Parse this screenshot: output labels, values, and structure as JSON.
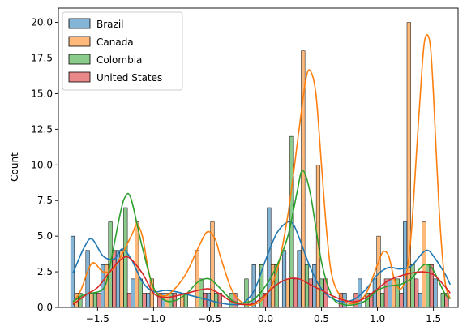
{
  "chart_data": {
    "type": "bar",
    "title": "",
    "xlabel": "",
    "ylabel": "Count",
    "xlim": [
      -1.85,
      1.72
    ],
    "ylim": [
      0,
      21
    ],
    "xticks": [
      -1.5,
      -1.0,
      -0.5,
      0.0,
      0.5,
      1.0,
      1.5
    ],
    "xtick_labels": [
      "−1.5",
      "−1.0",
      "−0.5",
      "0.0",
      "0.5",
      "1.0",
      "1.5"
    ],
    "yticks": [
      0,
      2.5,
      5,
      7.5,
      10,
      12.5,
      15,
      17.5,
      20
    ],
    "ytick_labels": [
      "0.0",
      "2.5",
      "5.0",
      "7.5",
      "10.0",
      "12.5",
      "15.0",
      "17.5",
      "20.0"
    ],
    "grid": false,
    "legend_position": "top-left",
    "bin_edges": [
      -1.74,
      -1.605,
      -1.47,
      -1.335,
      -1.2,
      -1.065,
      -0.93,
      -0.795,
      -0.66,
      -0.525,
      -0.39,
      -0.255,
      -0.12,
      0.015,
      0.15,
      0.285,
      0.42,
      0.555,
      0.69,
      0.825,
      0.96,
      1.095,
      1.23,
      1.365,
      1.5,
      1.635
    ],
    "series": [
      {
        "name": "Brazil",
        "color": "#1f77b4",
        "counts": [
          5,
          4,
          3,
          4,
          2,
          1,
          1,
          0,
          0,
          1,
          0,
          0,
          3,
          7,
          4,
          4,
          3,
          0,
          1,
          2,
          2,
          2,
          6,
          1,
          2
        ],
        "kde_x": [
          -1.72,
          -1.62,
          -1.55,
          -1.45,
          -1.35,
          -1.28,
          -1.2,
          -1.1,
          -1.0,
          -0.9,
          -0.8,
          -0.7,
          -0.6,
          -0.5,
          -0.4,
          -0.3,
          -0.2,
          -0.1,
          0.0,
          0.1,
          0.2,
          0.25,
          0.3,
          0.4,
          0.5,
          0.6,
          0.7,
          0.8,
          0.9,
          1.0,
          1.1,
          1.2,
          1.3,
          1.4,
          1.45,
          1.5,
          1.6,
          1.65
        ],
        "kde_y": [
          2.4,
          4.2,
          4.8,
          3.6,
          3.4,
          4.1,
          3.4,
          1.8,
          1.1,
          1.2,
          1.1,
          0.9,
          0.7,
          0.5,
          0.3,
          0.2,
          0.3,
          1.2,
          3.3,
          5.2,
          6.0,
          5.8,
          4.9,
          2.8,
          1.3,
          0.6,
          0.4,
          0.6,
          1.3,
          2.3,
          2.8,
          2.7,
          2.9,
          3.8,
          4.0,
          3.6,
          2.4,
          1.6
        ]
      },
      {
        "name": "Canada",
        "color": "#ff7f0e",
        "counts": [
          1,
          1,
          3,
          4,
          6,
          2,
          1,
          1,
          4,
          6,
          0,
          0,
          0,
          3,
          2,
          18,
          10,
          0,
          0,
          0,
          5,
          2,
          20,
          6,
          0
        ],
        "kde_x": [
          -1.72,
          -1.65,
          -1.55,
          -1.45,
          -1.35,
          -1.2,
          -1.15,
          -1.1,
          -1.05,
          -1.0,
          -0.9,
          -0.8,
          -0.7,
          -0.6,
          -0.52,
          -0.45,
          -0.4,
          -0.3,
          -0.2,
          -0.1,
          0.0,
          0.1,
          0.2,
          0.3,
          0.36,
          0.4,
          0.45,
          0.5,
          0.55,
          0.6,
          0.7,
          0.8,
          0.9,
          1.0,
          1.05,
          1.1,
          1.15,
          1.2,
          1.25,
          1.3,
          1.35,
          1.4,
          1.43,
          1.47,
          1.5,
          1.55,
          1.6,
          1.65
        ],
        "kde_y": [
          0.3,
          1.2,
          3.1,
          2.5,
          2.8,
          5.0,
          5.8,
          5.0,
          2.8,
          1.3,
          0.8,
          1.4,
          2.5,
          4.2,
          5.3,
          4.8,
          3.5,
          1.2,
          0.3,
          0.2,
          0.8,
          2.5,
          6.5,
          12.5,
          16.0,
          16.6,
          15.0,
          10.0,
          5.0,
          2.0,
          0.5,
          0.3,
          1.0,
          3.0,
          3.9,
          3.6,
          2.0,
          1.3,
          2.0,
          5.0,
          11.0,
          17.0,
          19.0,
          18.5,
          15.0,
          7.0,
          2.0,
          0.6
        ]
      },
      {
        "name": "Colombia",
        "color": "#2ca02c",
        "counts": [
          1,
          1,
          6,
          7,
          2,
          0,
          1,
          1,
          2,
          1,
          1,
          2,
          3,
          3,
          12,
          3,
          2,
          0,
          0,
          1,
          1,
          2,
          3,
          3,
          1
        ],
        "kde_x": [
          -1.72,
          -1.62,
          -1.55,
          -1.45,
          -1.4,
          -1.3,
          -1.25,
          -1.2,
          -1.1,
          -1.0,
          -0.9,
          -0.8,
          -0.7,
          -0.6,
          -0.5,
          -0.4,
          -0.3,
          -0.2,
          -0.1,
          0.0,
          0.1,
          0.2,
          0.28,
          0.33,
          0.4,
          0.5,
          0.6,
          0.7,
          0.8,
          0.9,
          1.0,
          1.1,
          1.2,
          1.3,
          1.4,
          1.45,
          1.5,
          1.6,
          1.65
        ],
        "kde_y": [
          0.4,
          0.9,
          1.0,
          1.3,
          2.5,
          6.5,
          7.8,
          7.6,
          4.2,
          1.4,
          0.5,
          0.5,
          1.0,
          1.8,
          2.0,
          1.3,
          0.5,
          0.3,
          0.6,
          1.5,
          2.9,
          5.0,
          8.0,
          9.6,
          8.0,
          3.2,
          0.7,
          0.2,
          0.2,
          0.5,
          1.2,
          1.5,
          1.6,
          2.0,
          2.9,
          3.0,
          2.6,
          1.0,
          0.6
        ]
      },
      {
        "name": "United States",
        "color": "#d62728",
        "counts": [
          0,
          1,
          4,
          1,
          1,
          1,
          1,
          0,
          1,
          1,
          1,
          0,
          1,
          0,
          2,
          2,
          2,
          1,
          1,
          1,
          2,
          1,
          2,
          3,
          1
        ],
        "kde_x": [
          -1.72,
          -1.6,
          -1.5,
          -1.4,
          -1.3,
          -1.22,
          -1.1,
          -1.0,
          -0.9,
          -0.8,
          -0.7,
          -0.6,
          -0.5,
          -0.4,
          -0.3,
          -0.2,
          -0.1,
          0.0,
          0.1,
          0.2,
          0.3,
          0.4,
          0.5,
          0.6,
          0.7,
          0.8,
          0.9,
          1.0,
          1.1,
          1.2,
          1.3,
          1.4,
          1.5,
          1.6,
          1.65
        ],
        "kde_y": [
          0.2,
          0.9,
          1.4,
          2.4,
          3.3,
          3.5,
          2.4,
          1.0,
          0.7,
          0.8,
          1.0,
          1.2,
          1.3,
          0.9,
          0.4,
          0.2,
          0.3,
          0.9,
          1.6,
          2.0,
          2.0,
          1.6,
          1.2,
          0.8,
          0.5,
          0.4,
          0.7,
          1.3,
          1.9,
          2.2,
          2.4,
          2.5,
          2.3,
          1.5,
          1.0
        ]
      }
    ]
  }
}
